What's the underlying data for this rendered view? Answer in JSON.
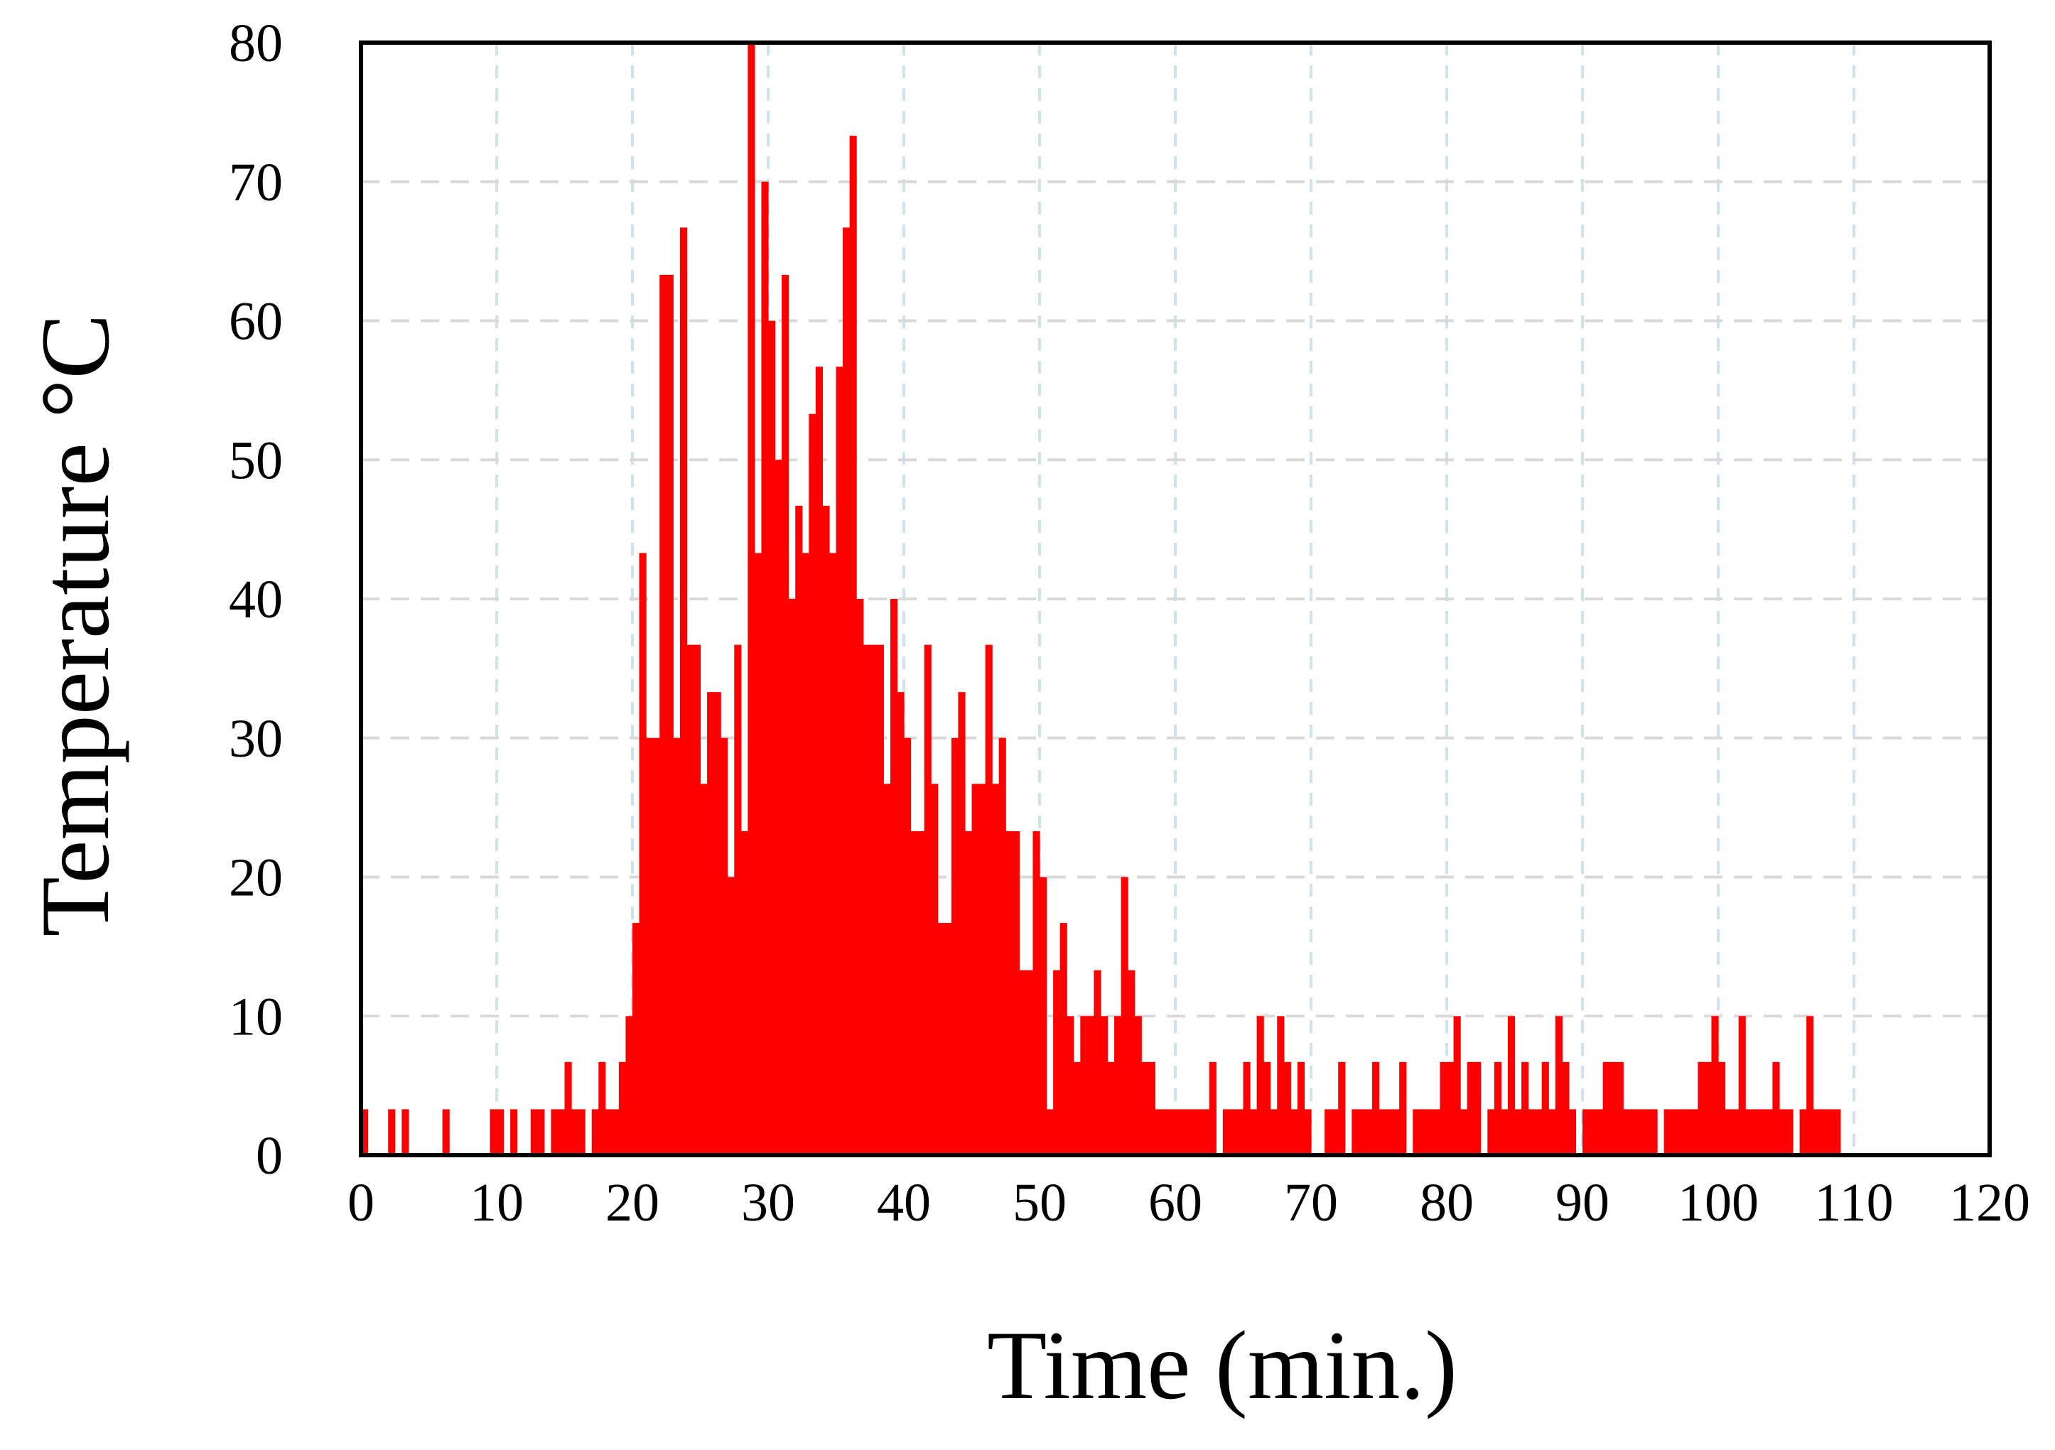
{
  "colors": {
    "bar": "#ff0000",
    "frame": "#000000",
    "grid": "#cfe3ef",
    "background": "#ffffff"
  },
  "chart_data": {
    "type": "bar",
    "title": "",
    "xlabel": "Time (min.)",
    "ylabel": "Temperature °C",
    "xlim": [
      0,
      120
    ],
    "ylim": [
      0,
      80
    ],
    "x_ticks": [
      0,
      10,
      20,
      30,
      40,
      50,
      60,
      70,
      80,
      90,
      100,
      110,
      120
    ],
    "x_tick_labels": [
      "0",
      "10",
      "20",
      "30",
      "40",
      "50",
      "60",
      "70",
      "80",
      "90",
      "100",
      "110",
      "120"
    ],
    "y_ticks": [
      0,
      10,
      20,
      30,
      40,
      50,
      60,
      70,
      80
    ],
    "y_tick_labels": [
      "0",
      "10",
      "20",
      "30",
      "40",
      "50",
      "60",
      "70",
      "80"
    ],
    "grid": true,
    "grid_style": "dashed",
    "legend": "none",
    "bin_width_min": 0.5,
    "series": [
      {
        "values": [
          3.3,
          0,
          0,
          0,
          3.3,
          0,
          3.3,
          0,
          0,
          0,
          0,
          0,
          3.3,
          0,
          0,
          0,
          0,
          0,
          0,
          3.3,
          3.3,
          0,
          3.3,
          0,
          0,
          3.3,
          3.3,
          0,
          3.3,
          3.3,
          6.7,
          3.3,
          3.3,
          0,
          3.3,
          6.7,
          3.3,
          3.3,
          6.7,
          10,
          16.7,
          43.3,
          30,
          30,
          63.3,
          63.3,
          30,
          66.7,
          36.7,
          36.7,
          26.7,
          33.3,
          33.3,
          30,
          20,
          36.7,
          23.3,
          80,
          43.3,
          70,
          60,
          50,
          63.3,
          40,
          46.7,
          43.3,
          53.3,
          56.7,
          46.7,
          43.3,
          56.7,
          66.7,
          73.3,
          40,
          36.7,
          36.7,
          36.7,
          26.7,
          40,
          33.3,
          30,
          23.3,
          23.3,
          36.7,
          26.7,
          16.7,
          16.7,
          30,
          33.3,
          23.3,
          26.7,
          26.7,
          36.7,
          26.7,
          30,
          23.3,
          23.3,
          13.3,
          13.3,
          23.3,
          20,
          3.3,
          13.3,
          16.7,
          10,
          6.7,
          10,
          10,
          13.3,
          10,
          6.7,
          10,
          20,
          13.3,
          10,
          6.7,
          6.7,
          3.3,
          3.3,
          3.3,
          3.3,
          3.3,
          3.3,
          3.3,
          3.3,
          6.7,
          0,
          3.3,
          3.3,
          3.3,
          6.7,
          3.3,
          10,
          6.7,
          3.3,
          10,
          6.7,
          3.3,
          6.7,
          3.3,
          0,
          0,
          3.3,
          3.3,
          6.7,
          0,
          3.3,
          3.3,
          3.3,
          6.7,
          3.3,
          3.3,
          3.3,
          6.7,
          0,
          3.3,
          3.3,
          3.3,
          3.3,
          6.7,
          6.7,
          10,
          3.3,
          6.7,
          6.7,
          0,
          3.3,
          6.7,
          3.3,
          10,
          3.3,
          6.7,
          3.3,
          3.3,
          6.7,
          3.3,
          10,
          6.7,
          3.3,
          0,
          3.3,
          3.3,
          3.3,
          6.7,
          6.7,
          6.7,
          3.3,
          3.3,
          3.3,
          3.3,
          3.3,
          0,
          3.3,
          3.3,
          3.3,
          3.3,
          3.3,
          6.7,
          6.7,
          10,
          6.7,
          3.3,
          3.3,
          10,
          3.3,
          3.3,
          3.3,
          3.3,
          6.7,
          3.3,
          3.3,
          0,
          3.3,
          10,
          3.3,
          3.3,
          3.3,
          3.3
        ]
      }
    ]
  }
}
